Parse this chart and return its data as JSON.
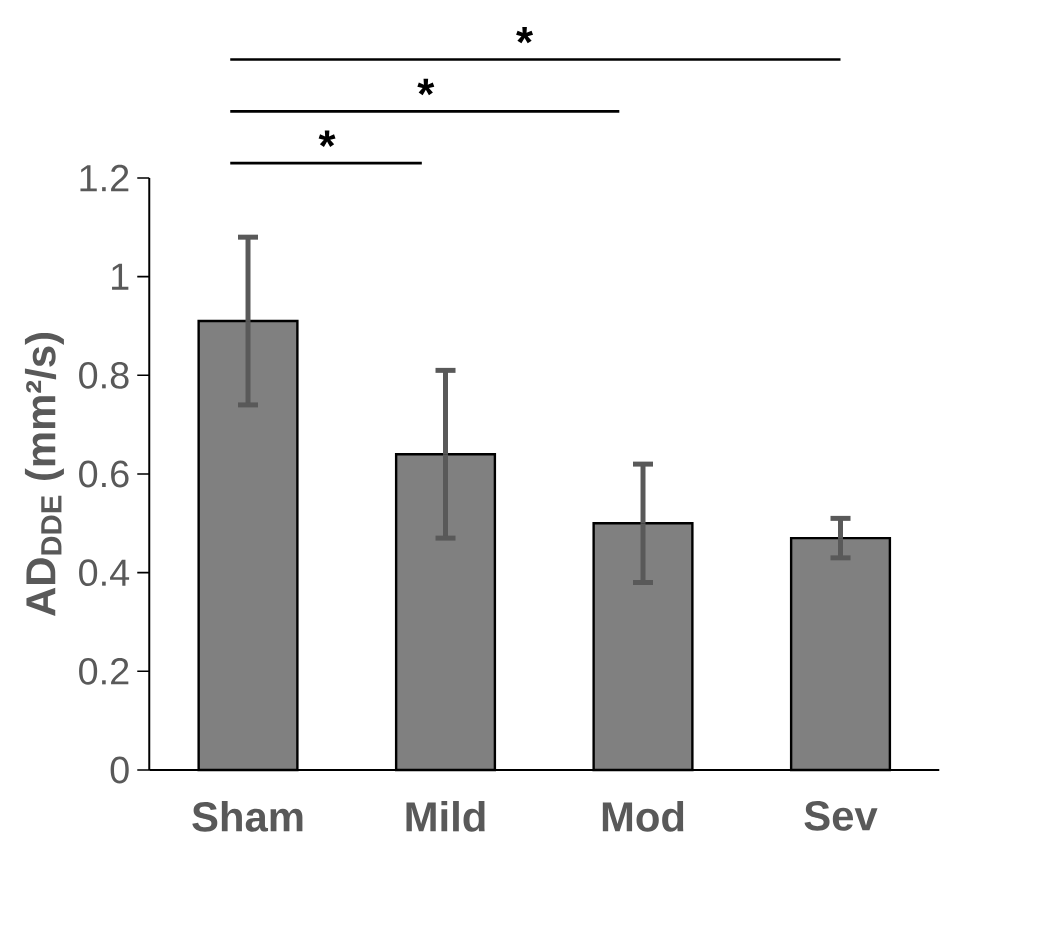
{
  "chart_data": {
    "type": "bar",
    "ylabel": "**AD$_{DDE}$ (mm²/s)**",
    "categories": [
      "Sham",
      "Mild",
      "Mod",
      "Sev"
    ],
    "values": [
      0.91,
      0.64,
      0.5,
      0.47
    ],
    "errors": [
      0.17,
      0.17,
      0.12,
      0.04
    ],
    "color": "#808080",
    "ylim": [
      0,
      1.2
    ],
    "yticks": [
      0,
      0.2,
      0.4,
      0.6,
      0.8,
      1,
      1.2
    ],
    "annotations": [
      "*",
      "*",
      "*"
    ]
  }
}
